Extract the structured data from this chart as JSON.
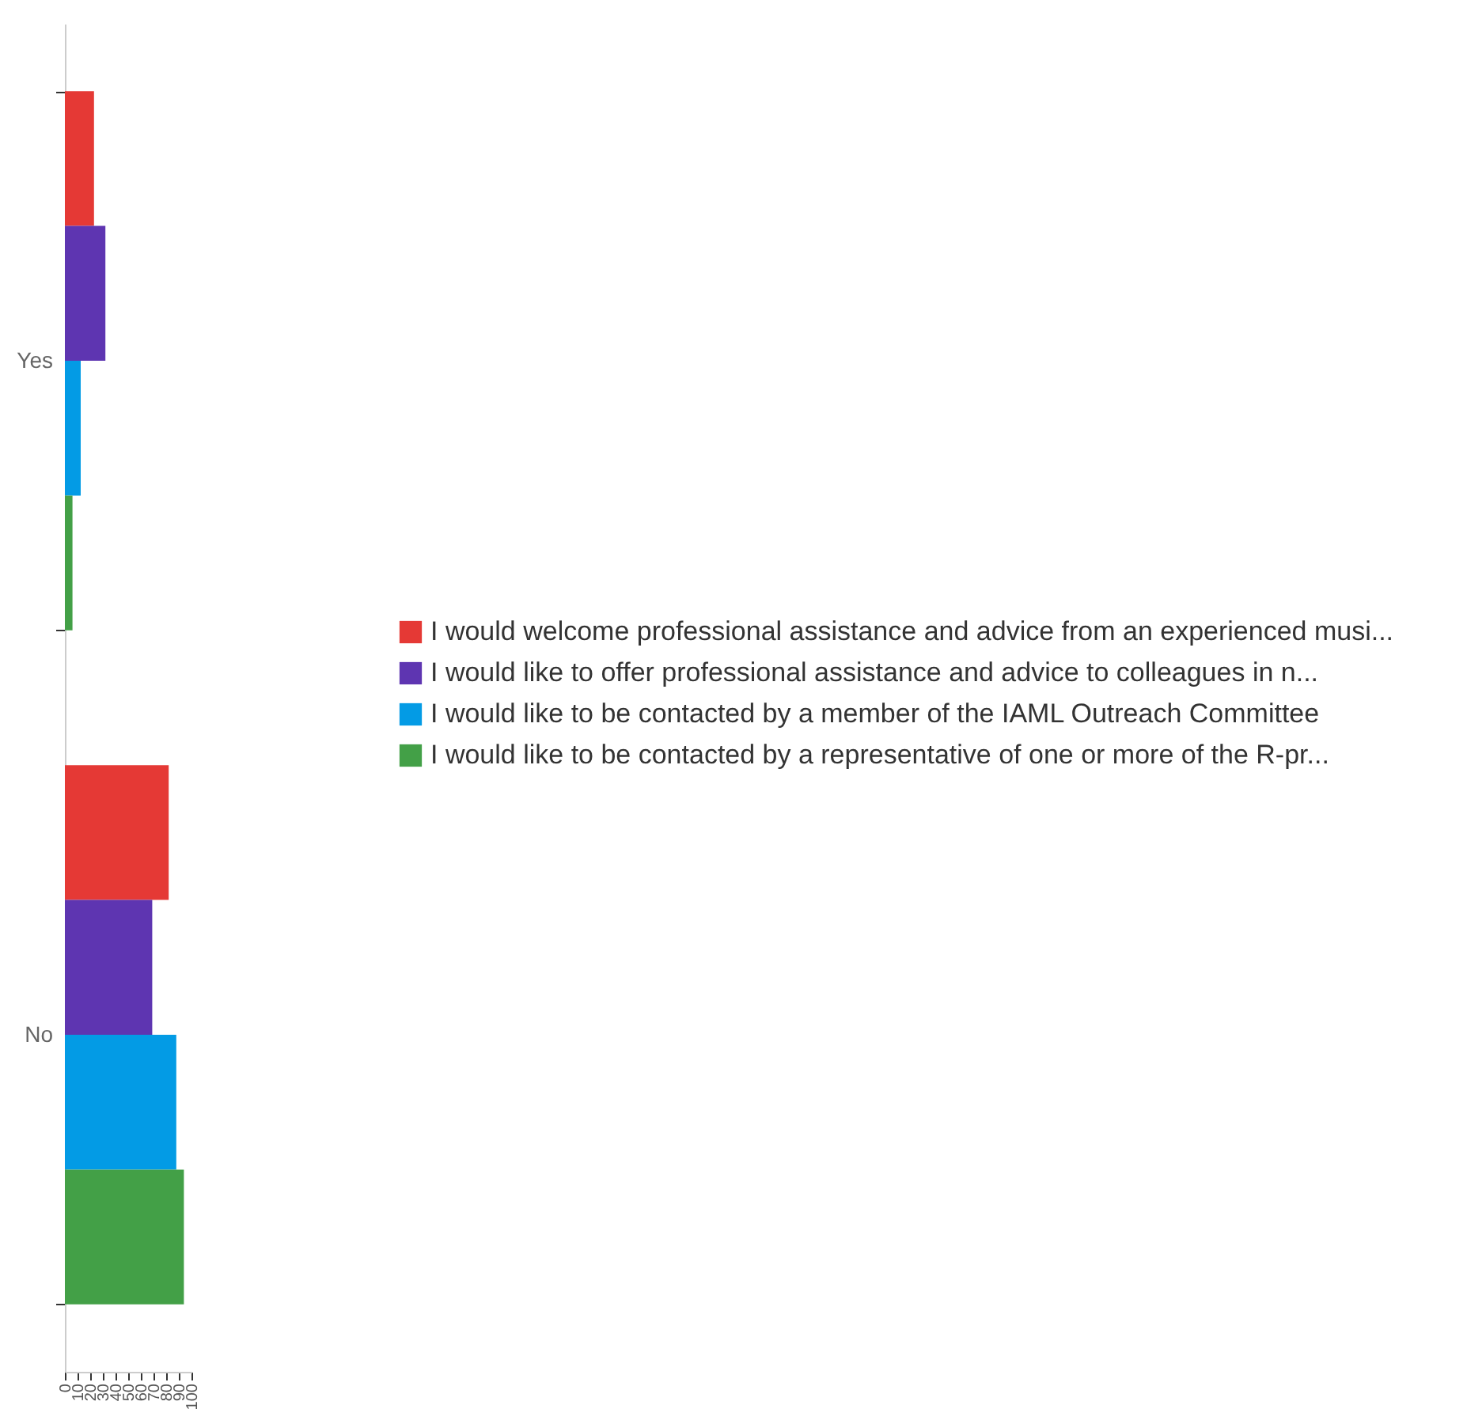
{
  "chart_data": {
    "type": "bar",
    "orientation": "horizontal",
    "categories": [
      "Yes",
      "No"
    ],
    "series": [
      {
        "name": "I would welcome professional assistance and advice from an experienced musi...",
        "color": "#e53935",
        "values": [
          23,
          82
        ]
      },
      {
        "name": "I would like to offer professional assistance and advice to colleagues in n...",
        "color": "#5e35b1",
        "values": [
          32,
          69
        ]
      },
      {
        "name": "I would like to be contacted by a member of the IAML Outreach Committee",
        "color": "#039be5",
        "values": [
          12.5,
          88
        ]
      },
      {
        "name": "I would like to be contacted by a representative of one or more of the R-pr...",
        "color": "#43a047",
        "values": [
          6,
          94
        ]
      }
    ],
    "xlim": [
      0,
      100
    ],
    "xticks": [
      0,
      10,
      20,
      30,
      40,
      50,
      60,
      70,
      80,
      90,
      100
    ],
    "grid": false,
    "legend": "right"
  }
}
